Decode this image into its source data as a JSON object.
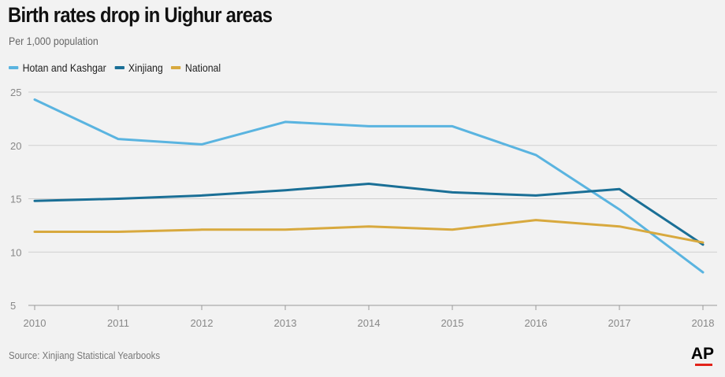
{
  "header": {
    "title": "Birth rates drop in Uighur areas",
    "subtitle": "Per 1,000 population"
  },
  "legend": [
    {
      "label": "Hotan and Kashgar",
      "color": "#5ab4e0"
    },
    {
      "label": "Xinjiang",
      "color": "#1a6f96"
    },
    {
      "label": "National",
      "color": "#d8a93e"
    }
  ],
  "footer": {
    "source": "Source: Xinjiang Statistical Yearbooks",
    "logo": "AP"
  },
  "chart_data": {
    "type": "line",
    "title": "Birth rates drop in Uighur areas",
    "subtitle": "Per 1,000 population",
    "xlabel": "",
    "ylabel": "",
    "x": [
      2010,
      2011,
      2012,
      2013,
      2014,
      2015,
      2016,
      2017,
      2018
    ],
    "ylim": [
      5,
      25
    ],
    "yticks": [
      5,
      10,
      15,
      20,
      25
    ],
    "grid": true,
    "legend_position": "top-left",
    "series": [
      {
        "name": "Hotan and Kashgar",
        "color": "#5ab4e0",
        "values": [
          24.3,
          20.6,
          20.1,
          22.2,
          21.8,
          21.8,
          19.1,
          14.0,
          8.1
        ]
      },
      {
        "name": "Xinjiang",
        "color": "#1a6f96",
        "values": [
          14.8,
          15.0,
          15.3,
          15.8,
          16.4,
          15.6,
          15.3,
          15.9,
          10.7
        ]
      },
      {
        "name": "National",
        "color": "#d8a93e",
        "values": [
          11.9,
          11.9,
          12.1,
          12.1,
          12.4,
          12.1,
          13.0,
          12.4,
          10.9
        ]
      }
    ]
  }
}
